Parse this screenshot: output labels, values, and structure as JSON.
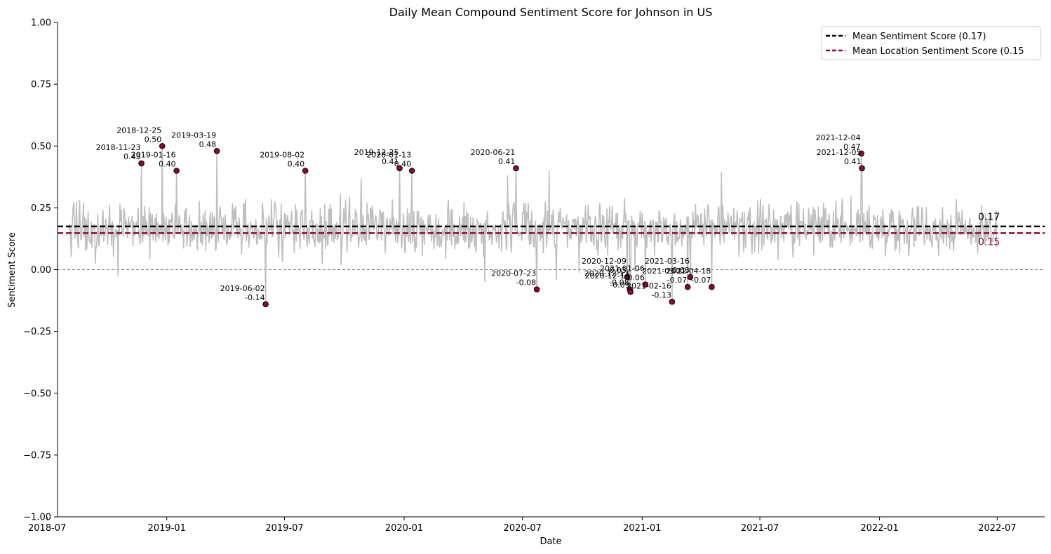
{
  "chart_data": {
    "type": "line",
    "title": "Daily Mean Compound Sentiment Score for Johnson in US",
    "xlabel": "Date",
    "ylabel": "Sentiment Score",
    "xlim": [
      "2018-07-17",
      "2022-09-12"
    ],
    "ylim": [
      -1.0,
      1.0
    ],
    "grid": false,
    "legend_position": "top-right",
    "x_ticks": [
      "2018-07-01",
      "2019-01-01",
      "2019-07-01",
      "2020-01-01",
      "2020-07-01",
      "2021-01-01",
      "2021-07-01",
      "2022-01-01",
      "2022-07-01"
    ],
    "x_tick_labels": [
      "2018-07",
      "2019-01",
      "2019-07",
      "2020-01",
      "2020-07",
      "2021-01",
      "2021-07",
      "2022-01",
      "2022-07"
    ],
    "y_ticks": [
      1.0,
      0.75,
      0.5,
      0.25,
      0.0,
      -0.25,
      -0.5,
      -0.75,
      -1.0
    ],
    "y_tick_labels": [
      "1.00",
      "0.75",
      "0.50",
      "0.25",
      "0.00",
      "−0.25",
      "−0.50",
      "−0.75",
      "−1.00"
    ],
    "series_color": "#bfbfbf",
    "series_range": {
      "start": "2018-08-01",
      "end": "2022-06-30",
      "approx_mean": 0.17,
      "approx_spread": 0.06
    },
    "reference_line": {
      "value": 0.0,
      "color": "#808080",
      "style": "dotted"
    },
    "mean_lines": [
      {
        "name": "Mean Sentiment Score (0.17)",
        "value": 0.175,
        "label": "0.17",
        "color": "#000000"
      },
      {
        "name": "Mean Location Sentiment Score (0.15",
        "value": 0.148,
        "label": "0.15",
        "color": "#8b0a3a"
      }
    ],
    "highlight_marker_color": "#8b0a3a",
    "highlights": [
      {
        "date": "2018-11-23",
        "value": 0.43,
        "date_label": "2018-11-23",
        "value_label": "0.43"
      },
      {
        "date": "2018-12-25",
        "value": 0.5,
        "date_label": "2018-12-25",
        "value_label": "0.50"
      },
      {
        "date": "2019-01-16",
        "value": 0.4,
        "date_label": "2019-01-16",
        "value_label": "0.40"
      },
      {
        "date": "2019-03-19",
        "value": 0.48,
        "date_label": "2019-03-19",
        "value_label": "0.48"
      },
      {
        "date": "2019-06-02",
        "value": -0.14,
        "date_label": "2019-06-02",
        "value_label": "-0.14"
      },
      {
        "date": "2019-08-02",
        "value": 0.4,
        "date_label": "2019-08-02",
        "value_label": "0.40"
      },
      {
        "date": "2019-12-25",
        "value": 0.41,
        "date_label": "2019-12-25",
        "value_label": "0.41"
      },
      {
        "date": "2020-01-13",
        "value": 0.4,
        "date_label": "2020-01-13",
        "value_label": "0.40"
      },
      {
        "date": "2020-06-21",
        "value": 0.41,
        "date_label": "2020-06-21",
        "value_label": "0.41"
      },
      {
        "date": "2020-07-23",
        "value": -0.08,
        "date_label": "2020-07-23",
        "value_label": "-0.08"
      },
      {
        "date": "2020-12-09",
        "value": -0.03,
        "date_label": "2020-12-09",
        "value_label": "-0.03"
      },
      {
        "date": "2020-12-13",
        "value": -0.08,
        "date_label": "2020-12-13",
        "value_label": "-0.08"
      },
      {
        "date": "2020-12-14",
        "value": -0.09,
        "date_label": "2020-12-14",
        "value_label": "-0.09"
      },
      {
        "date": "2021-01-06",
        "value": -0.06,
        "date_label": "2021-01-06",
        "value_label": "-0.06"
      },
      {
        "date": "2021-02-16",
        "value": -0.13,
        "date_label": "2021-02-16",
        "value_label": "-0.13"
      },
      {
        "date": "2021-03-12",
        "value": -0.07,
        "date_label": "2021-03-12",
        "value_label": "-0.07"
      },
      {
        "date": "2021-03-16",
        "value": -0.03,
        "date_label": "2021-03-16",
        "value_label": "-0.03"
      },
      {
        "date": "2021-04-18",
        "value": -0.07,
        "date_label": "2021-04-18",
        "value_label": "-0.07"
      },
      {
        "date": "2021-12-04",
        "value": 0.47,
        "date_label": "2021-12-04",
        "value_label": "0.47"
      },
      {
        "date": "2021-12-05",
        "value": 0.41,
        "date_label": "2021-12-05",
        "value_label": "0.41"
      }
    ]
  }
}
